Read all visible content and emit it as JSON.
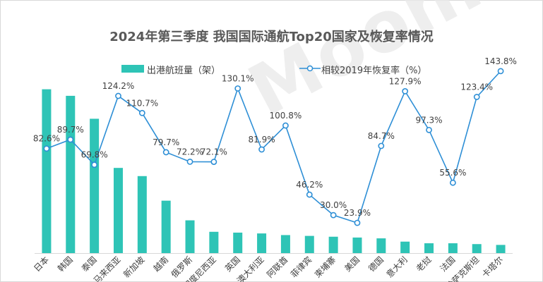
{
  "title": "2024年第三季度 我国国际通航Top20国家及恢复率情况",
  "watermark": "MoonFox",
  "legend": {
    "bar": "出港航班量（架）",
    "line": "相较2019年恢复率（%）"
  },
  "colors": {
    "bar": "#2ec4b6",
    "line": "#2e8fd6",
    "axis": "#d9d9d9",
    "text": "#404040"
  },
  "chart_data": {
    "type": "bar",
    "categories": [
      "日本",
      "韩国",
      "泰国",
      "马来西亚",
      "新加坡",
      "越南",
      "俄罗斯",
      "印度尼西亚",
      "英国",
      "澳大利亚",
      "阿联酋",
      "菲律宾",
      "柬埔寨",
      "美国",
      "德国",
      "意大利",
      "老挝",
      "法国",
      "哈萨克斯坦",
      "卡塔尔"
    ],
    "series": [
      {
        "name": "出港航班量（架）",
        "type": "bar",
        "values": [
          100,
          96,
          82,
          52,
          47,
          32,
          20,
          13,
          12.5,
          12,
          11,
          10.5,
          10,
          9.5,
          9,
          7,
          6,
          6,
          5.5,
          5
        ]
      },
      {
        "name": "相较2019年恢复率（%）",
        "type": "line",
        "values": [
          82.6,
          89.7,
          69.8,
          124.2,
          110.7,
          79.7,
          72.2,
          72.1,
          130.1,
          81.9,
          100.8,
          46.2,
          30.0,
          23.9,
          84.7,
          127.9,
          97.3,
          55.6,
          123.4,
          143.8
        ],
        "labels": [
          "82.6%",
          "89.7%",
          "69.8%",
          "124.2%",
          "110.7%",
          "79.7%",
          "72.2%",
          "72.1%",
          "130.1%",
          "81.9%",
          "100.8%",
          "46.2%",
          "30.0%",
          "23.9%",
          "84.7%",
          "127.9%",
          "97.3%",
          "55.6%",
          "123.4%",
          "143.8%"
        ]
      }
    ],
    "bar_ylim": [
      0,
      105
    ],
    "line_ylim": [
      0,
      200
    ],
    "grid": false,
    "legend_position": "top"
  }
}
